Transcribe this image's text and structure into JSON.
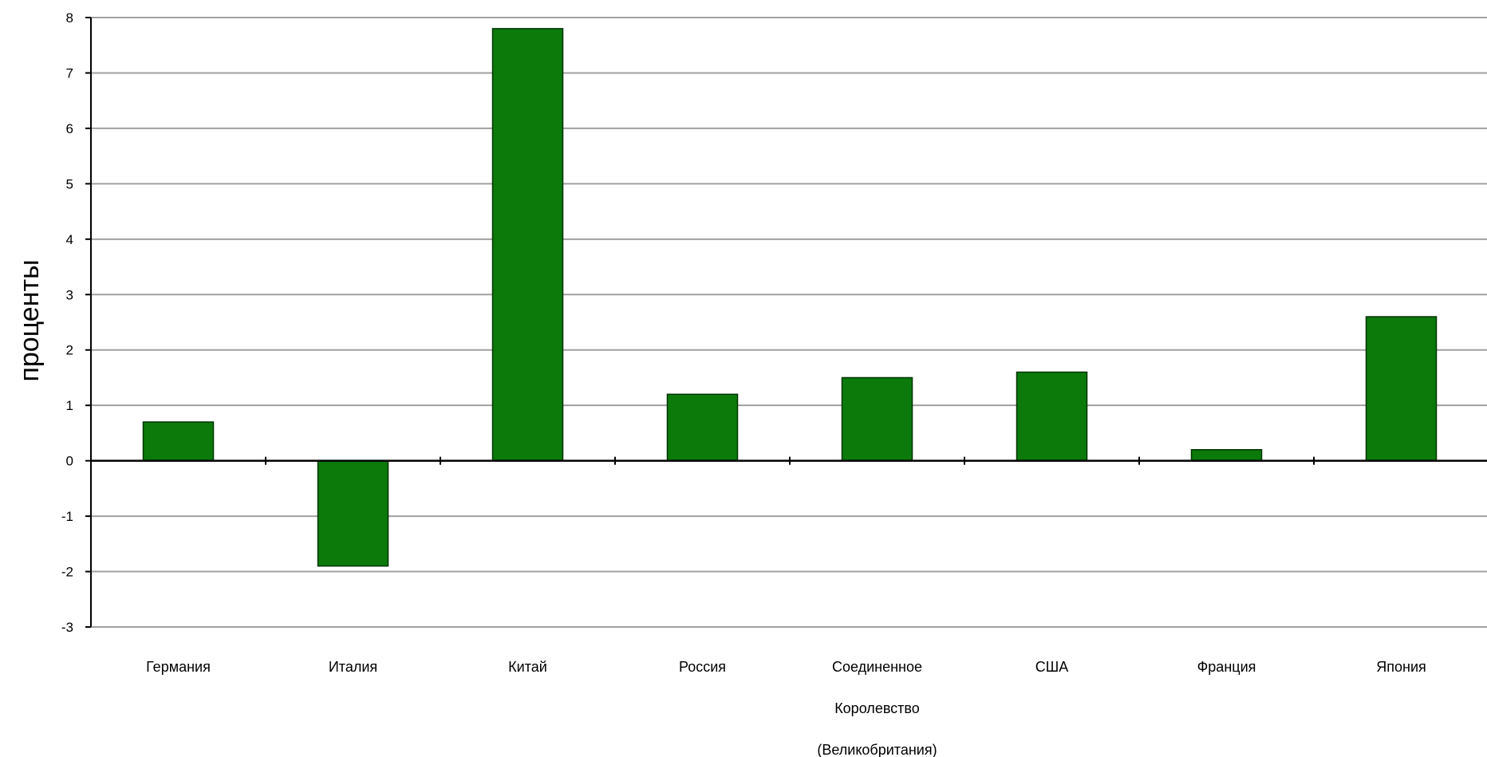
{
  "chart_data": {
    "type": "bar",
    "ylabel": "проценты",
    "categories": [
      [
        "Германия"
      ],
      [
        "Италия"
      ],
      [
        "Китай"
      ],
      [
        "Россия"
      ],
      [
        "Соединенное",
        "Королевство",
        "(Великобритания)"
      ],
      [
        "США"
      ],
      [
        "Франция"
      ],
      [
        "Япония"
      ]
    ],
    "values": [
      0.7,
      -1.9,
      7.8,
      1.2,
      1.5,
      1.6,
      0.2,
      2.6
    ],
    "ylim": [
      -3,
      8
    ],
    "yticks": [
      8,
      7,
      6,
      5,
      4,
      3,
      2,
      1,
      0,
      -1,
      -2,
      -3
    ],
    "grid": true,
    "colors": {
      "bar": "#0b7a0b",
      "bar_edge": "#003300",
      "grid": "#a0a0a0",
      "axis": "#000000"
    }
  }
}
